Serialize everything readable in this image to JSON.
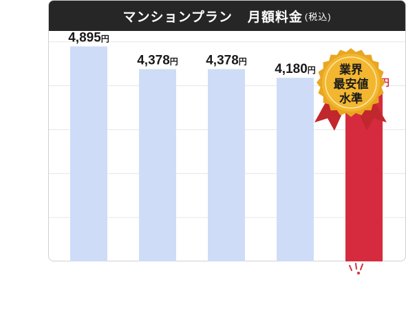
{
  "title": {
    "plan": "マンションプラン",
    "main": "月額料金",
    "tax": "(税込)"
  },
  "badge": {
    "line1": "業界",
    "line2": "最安値",
    "line3": "水準"
  },
  "colors": {
    "bar": "#cfdcf7",
    "highlight": "#d62b3e",
    "title_bg": "#262626",
    "gold": "#f2b630",
    "ribbon": "#c1272d"
  },
  "chart_data": {
    "type": "bar",
    "unit": "円",
    "ylim": [
      0,
      5200
    ],
    "grid": true,
    "values": [
      4895,
      4378,
      4378,
      4180,
      3850
    ],
    "labels": [
      "4,895",
      "4,378",
      "4,378",
      "4,180",
      "3,850"
    ],
    "highlight_index": 4
  }
}
